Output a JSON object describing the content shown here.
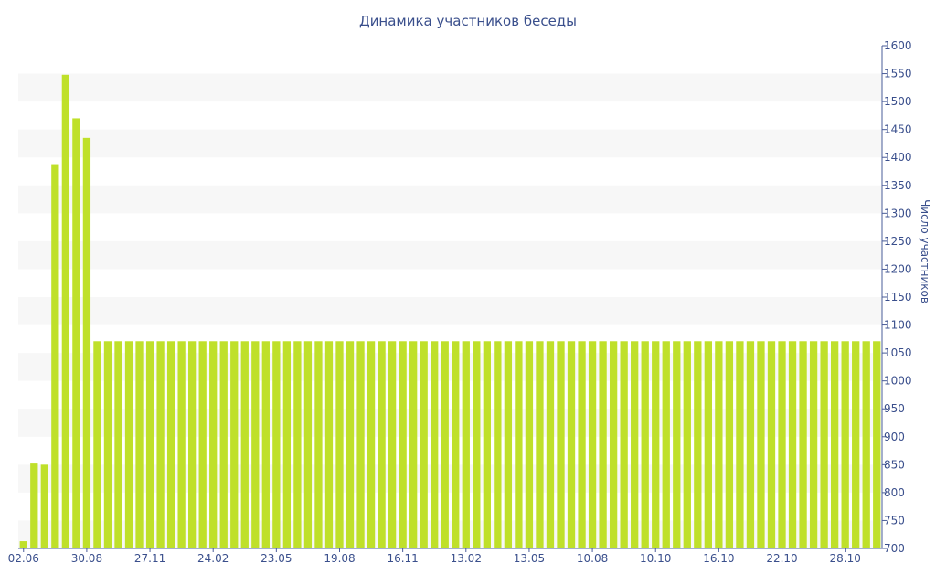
{
  "chart_data": {
    "type": "bar",
    "title": "Динамика участников беседы",
    "xlabel": "",
    "ylabel": "Число участников",
    "y_axis_side": "right",
    "ylim": [
      700,
      1600
    ],
    "yticks": [
      700,
      750,
      800,
      850,
      900,
      950,
      1000,
      1050,
      1100,
      1150,
      1200,
      1250,
      1300,
      1350,
      1400,
      1450,
      1500,
      1550,
      1600
    ],
    "x_tick_labels": [
      "02.06",
      "30.08",
      "27.11",
      "24.02",
      "23.05",
      "19.08",
      "16.11",
      "13.02",
      "13.05",
      "10.08",
      "10.10",
      "16.10",
      "22.10",
      "28.10"
    ],
    "x_tick_label_every": 6,
    "grid": "alternating horizontal bands",
    "legend": "none",
    "values": [
      713,
      852,
      850,
      1388,
      1548,
      1470,
      1435,
      1071,
      1071,
      1071,
      1071,
      1071,
      1071,
      1071,
      1071,
      1071,
      1071,
      1071,
      1071,
      1071,
      1071,
      1071,
      1071,
      1071,
      1071,
      1071,
      1071,
      1071,
      1071,
      1071,
      1071,
      1071,
      1071,
      1071,
      1071,
      1071,
      1071,
      1071,
      1071,
      1071,
      1071,
      1071,
      1071,
      1071,
      1071,
      1071,
      1071,
      1071,
      1071,
      1071,
      1071,
      1071,
      1071,
      1071,
      1071,
      1071,
      1071,
      1071,
      1071,
      1071,
      1071,
      1071,
      1071,
      1071,
      1071,
      1071,
      1071,
      1071,
      1071,
      1071,
      1071,
      1071,
      1071,
      1071,
      1071,
      1071,
      1071,
      1071,
      1071,
      1071,
      1071,
      1071
    ],
    "colors": {
      "bar": "#bfe02a",
      "band": "#f7f7f7",
      "text": "#3a4f8c",
      "axis": "#4a5c99"
    }
  }
}
